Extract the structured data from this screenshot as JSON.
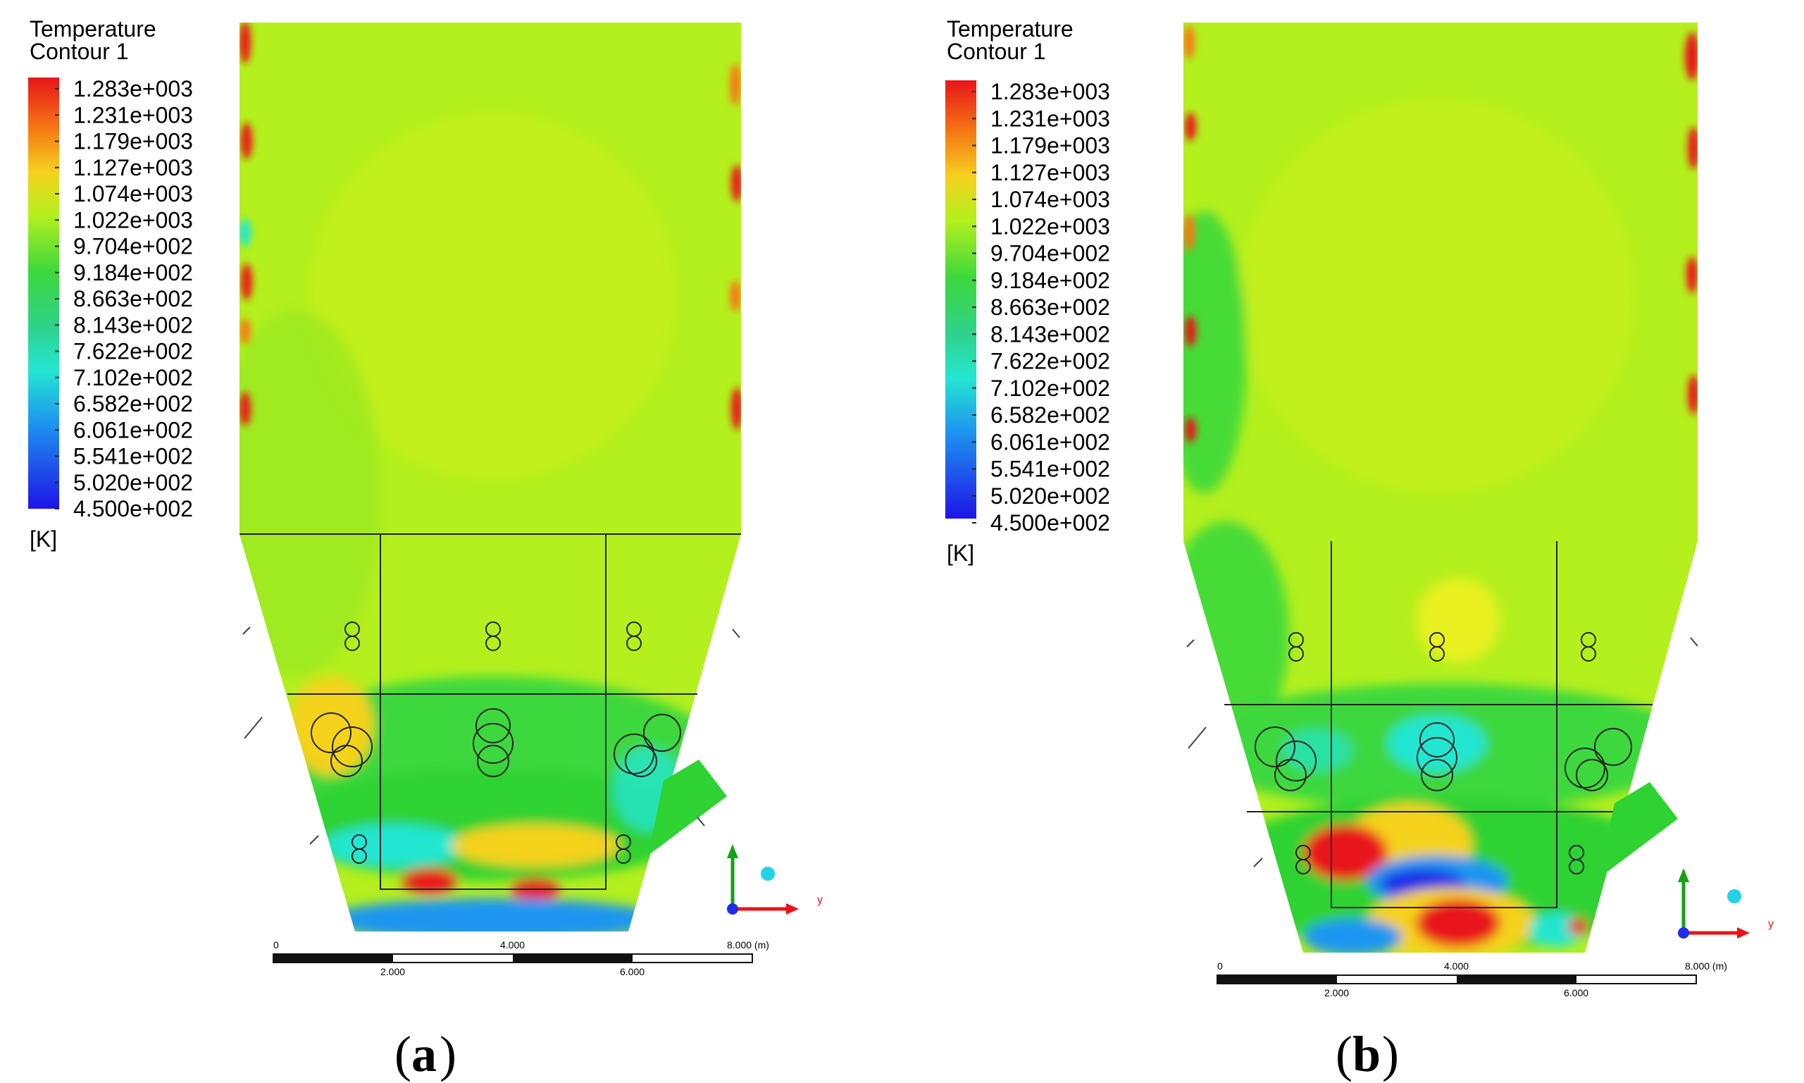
{
  "panels": [
    {
      "id": "a",
      "caption_letter": "a",
      "legend": {
        "title_line1": "Temperature",
        "title_line2": "Contour 1",
        "unit": "[K]",
        "values": [
          "1.283e+003",
          "1.231e+003",
          "1.179e+003",
          "1.127e+003",
          "1.074e+003",
          "1.022e+003",
          "9.704e+002",
          "9.184e+002",
          "8.663e+002",
          "8.143e+002",
          "7.622e+002",
          "7.102e+002",
          "6.582e+002",
          "6.061e+002",
          "5.541e+002",
          "5.020e+002",
          "4.500e+002"
        ]
      },
      "scale": {
        "ticks_top": [
          "0",
          "4.000",
          "8.000 (m)"
        ],
        "ticks_bottom": [
          "2.000",
          "6.000"
        ]
      },
      "axis": {
        "label": "y"
      }
    },
    {
      "id": "b",
      "caption_letter": "b",
      "legend": {
        "title_line1": "Temperature",
        "title_line2": "Contour 1",
        "unit": "[K]",
        "values": [
          "1.283e+003",
          "1.231e+003",
          "1.179e+003",
          "1.127e+003",
          "1.074e+003",
          "1.022e+003",
          "9.704e+002",
          "9.184e+002",
          "8.663e+002",
          "8.143e+002",
          "7.622e+002",
          "7.102e+002",
          "6.582e+002",
          "6.061e+002",
          "5.541e+002",
          "5.020e+002",
          "4.500e+002"
        ]
      },
      "scale": {
        "ticks_top": [
          "0",
          "4.000",
          "8.000 (m)"
        ],
        "ticks_bottom": [
          "2.000",
          "6.000"
        ]
      },
      "axis": {
        "label": "y"
      }
    }
  ],
  "colors": {
    "field_base": "#b4f01e",
    "hot": "#e8141a",
    "cold": "#1e2ee6",
    "cyan": "#24e6d2",
    "green": "#2ed232"
  }
}
